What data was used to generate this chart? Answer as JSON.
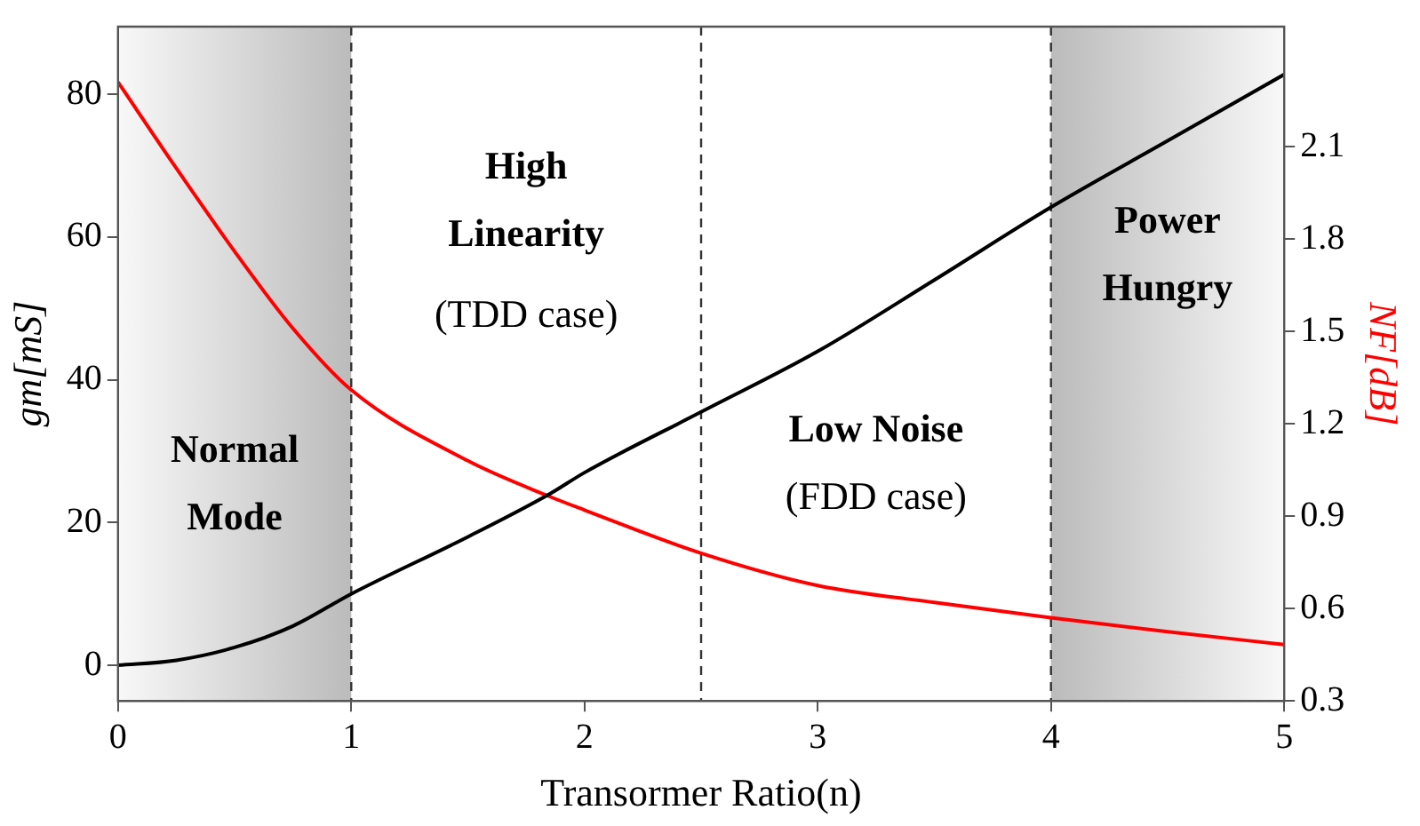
{
  "chart_data": {
    "type": "line",
    "xlabel": "Transormer Ratio(n)",
    "ylabel": "gm[mS]",
    "y2label": "NF[dB]",
    "xlim": [
      0,
      5
    ],
    "xticks": [
      0,
      1,
      2,
      3,
      4,
      5
    ],
    "ylim": [
      -5,
      89.5
    ],
    "yticks": [
      0,
      20,
      40,
      60,
      80
    ],
    "y2lim": [
      0.3,
      2.49
    ],
    "y2ticks": [
      0.3,
      0.6,
      0.9,
      1.2,
      1.5,
      1.8,
      2.1
    ],
    "grid": false,
    "legend": false,
    "marker": "none",
    "line_style": "solid",
    "series": [
      {
        "color": "#000000",
        "x": [
          0,
          0.25,
          0.5,
          0.75,
          1,
          1.5,
          1.85,
          2,
          2.5,
          3,
          3.5,
          4,
          4.5,
          5
        ],
        "values": [
          0,
          0.7,
          2.5,
          5.5,
          10,
          18,
          24,
          27,
          35.5,
          44,
          54,
          64.2,
          73.5,
          82.8
        ]
      },
      {
        "color": "#ff0000",
        "axis": "y2",
        "x": [
          0,
          0.25,
          0.5,
          0.75,
          1,
          1.5,
          1.85,
          2,
          2.5,
          3,
          3.5,
          4,
          4.5,
          5
        ],
        "values": [
          2.31,
          2.03,
          1.76,
          1.51,
          1.31,
          1.08,
          0.964,
          0.92,
          0.78,
          0.675,
          0.62,
          0.57,
          0.525,
          0.483
        ]
      }
    ],
    "bands": [
      {
        "axis": "x",
        "from": 0,
        "to": 1,
        "label": "Normal Mode",
        "color": "#bbbbbb"
      },
      {
        "axis": "x",
        "from": 4,
        "to": 5,
        "label": "Power Hungry",
        "color": "#bbbbbb"
      }
    ],
    "ref_lines": [
      {
        "axis": "x",
        "value": 1,
        "line_style": "dashed",
        "color": "#333333"
      },
      {
        "axis": "x",
        "value": 2.5,
        "line_style": "dashed",
        "color": "#333333"
      },
      {
        "axis": "x",
        "value": 4,
        "line_style": "dashed",
        "color": "#333333"
      }
    ],
    "annotations": [
      "High Linearity",
      "(TDD case)",
      "Low Noise",
      "(FDD case)"
    ]
  }
}
